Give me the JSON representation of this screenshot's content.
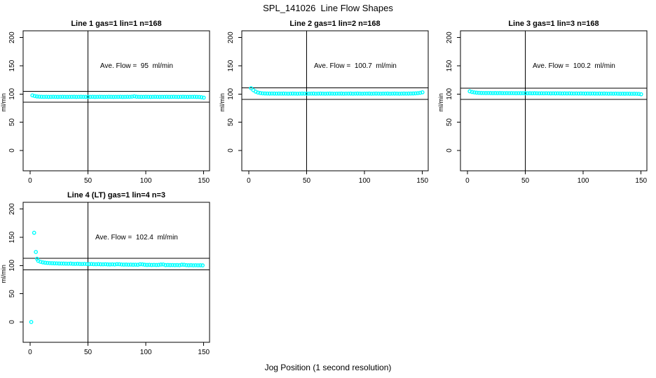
{
  "figure": {
    "title": "SPL_141026  Line Flow Shapes",
    "xlabel": "Jog Position (1 second resolution)",
    "background_color": "#ffffff",
    "text_color": "#000000"
  },
  "chart_data": {
    "type": "scatter",
    "point_color": "#00ffff",
    "axis_color": "#000000",
    "marker": "open-circle",
    "xlim": [
      -6,
      155
    ],
    "ylim": [
      -36,
      212
    ],
    "x_ticks": [
      0,
      50,
      100,
      150
    ],
    "y_ticks": [
      0,
      50,
      100,
      150,
      200
    ],
    "ylabel": "ml/min",
    "xlabel": "Jog Position (1 second resolution)",
    "vline_x": 50,
    "grid": "off",
    "legend": "none",
    "panels": [
      {
        "title": "Line 1 gas=1 lin=1 n=168",
        "gas": 1,
        "lin": 1,
        "n": 168,
        "ave_flow_value": 95,
        "ave_flow_label": "Ave. Flow =  95  ml/min",
        "ref_line_upper": 104.5,
        "ref_line_lower": 85.5,
        "points": [
          [
            2,
            97.6
          ],
          [
            4,
            96.4
          ],
          [
            6,
            95.7
          ],
          [
            8,
            95.3
          ],
          [
            10,
            95.1
          ],
          [
            12,
            95.0
          ],
          [
            14,
            95.1
          ],
          [
            16,
            94.9
          ],
          [
            18,
            95.0
          ],
          [
            20,
            95.1
          ],
          [
            22,
            95.0
          ],
          [
            24,
            94.9
          ],
          [
            26,
            95.0
          ],
          [
            28,
            95.1
          ],
          [
            30,
            95.0
          ],
          [
            32,
            94.9
          ],
          [
            34,
            95.0
          ],
          [
            36,
            95.0
          ],
          [
            38,
            95.1
          ],
          [
            40,
            94.9
          ],
          [
            42,
            95.0
          ],
          [
            44,
            95.1
          ],
          [
            46,
            95.0
          ],
          [
            48,
            94.9
          ],
          [
            50,
            95.0
          ],
          [
            52,
            95.0
          ],
          [
            54,
            95.1
          ],
          [
            56,
            94.9
          ],
          [
            58,
            95.0
          ],
          [
            60,
            95.1
          ],
          [
            62,
            95.0
          ],
          [
            64,
            94.9
          ],
          [
            66,
            95.0
          ],
          [
            68,
            95.1
          ],
          [
            70,
            95.0
          ],
          [
            72,
            94.9
          ],
          [
            74,
            95.0
          ],
          [
            76,
            95.0
          ],
          [
            78,
            95.1
          ],
          [
            80,
            94.9
          ],
          [
            82,
            95.0
          ],
          [
            84,
            95.1
          ],
          [
            86,
            95.0
          ],
          [
            88,
            95.3
          ],
          [
            90,
            95.9
          ],
          [
            92,
            95.2
          ],
          [
            94,
            95.0
          ],
          [
            96,
            94.9
          ],
          [
            98,
            95.0
          ],
          [
            100,
            95.1
          ],
          [
            102,
            95.0
          ],
          [
            104,
            94.9
          ],
          [
            106,
            95.0
          ],
          [
            108,
            95.1
          ],
          [
            110,
            95.0
          ],
          [
            112,
            94.9
          ],
          [
            114,
            95.0
          ],
          [
            116,
            95.0
          ],
          [
            118,
            95.1
          ],
          [
            120,
            94.9
          ],
          [
            122,
            95.0
          ],
          [
            124,
            95.1
          ],
          [
            126,
            95.0
          ],
          [
            128,
            94.9
          ],
          [
            130,
            95.0
          ],
          [
            132,
            95.1
          ],
          [
            134,
            95.0
          ],
          [
            136,
            94.9
          ],
          [
            138,
            95.0
          ],
          [
            140,
            95.0
          ],
          [
            142,
            95.1
          ],
          [
            144,
            94.9
          ],
          [
            146,
            94.8
          ],
          [
            148,
            94.3
          ],
          [
            150,
            93.6
          ]
        ]
      },
      {
        "title": "Line 2 gas=1 lin=2 n=168",
        "gas": 1,
        "lin": 2,
        "n": 168,
        "ave_flow_value": 100.7,
        "ave_flow_label": "Ave. Flow =  100.7  ml/min",
        "ref_line_upper": 110.8,
        "ref_line_lower": 90.6,
        "points": [
          [
            2,
            110.3
          ],
          [
            4,
            106.8
          ],
          [
            6,
            104.2
          ],
          [
            8,
            102.6
          ],
          [
            10,
            101.7
          ],
          [
            12,
            101.2
          ],
          [
            14,
            101.0
          ],
          [
            16,
            100.9
          ],
          [
            18,
            100.8
          ],
          [
            20,
            100.9
          ],
          [
            22,
            100.8
          ],
          [
            24,
            100.7
          ],
          [
            26,
            100.8
          ],
          [
            28,
            100.7
          ],
          [
            30,
            100.8
          ],
          [
            32,
            100.7
          ],
          [
            34,
            100.6
          ],
          [
            36,
            100.7
          ],
          [
            38,
            100.8
          ],
          [
            40,
            100.7
          ],
          [
            42,
            100.6
          ],
          [
            44,
            100.7
          ],
          [
            46,
            100.8
          ],
          [
            48,
            100.7
          ],
          [
            50,
            100.6
          ],
          [
            52,
            100.7
          ],
          [
            54,
            100.7
          ],
          [
            56,
            100.8
          ],
          [
            58,
            100.6
          ],
          [
            60,
            100.7
          ],
          [
            62,
            100.8
          ],
          [
            64,
            100.7
          ],
          [
            66,
            100.6
          ],
          [
            68,
            100.7
          ],
          [
            70,
            100.8
          ],
          [
            72,
            100.7
          ],
          [
            74,
            100.6
          ],
          [
            76,
            100.7
          ],
          [
            78,
            100.7
          ],
          [
            80,
            100.8
          ],
          [
            82,
            100.6
          ],
          [
            84,
            100.7
          ],
          [
            86,
            100.7
          ],
          [
            88,
            100.8
          ],
          [
            90,
            100.6
          ],
          [
            92,
            100.7
          ],
          [
            94,
            100.8
          ],
          [
            96,
            100.7
          ],
          [
            98,
            100.6
          ],
          [
            100,
            100.7
          ],
          [
            102,
            100.7
          ],
          [
            104,
            100.8
          ],
          [
            106,
            100.6
          ],
          [
            108,
            100.7
          ],
          [
            110,
            100.8
          ],
          [
            112,
            100.7
          ],
          [
            114,
            100.6
          ],
          [
            116,
            100.7
          ],
          [
            118,
            100.7
          ],
          [
            120,
            100.8
          ],
          [
            122,
            100.6
          ],
          [
            124,
            100.7
          ],
          [
            126,
            100.8
          ],
          [
            128,
            100.7
          ],
          [
            130,
            100.6
          ],
          [
            132,
            100.7
          ],
          [
            134,
            100.8
          ],
          [
            136,
            100.7
          ],
          [
            138,
            100.8
          ],
          [
            140,
            100.9
          ],
          [
            142,
            101.0
          ],
          [
            144,
            101.2
          ],
          [
            146,
            101.5
          ],
          [
            148,
            102.1
          ],
          [
            150,
            103.0
          ]
        ]
      },
      {
        "title": "Line 3 gas=1 lin=3 n=168",
        "gas": 1,
        "lin": 3,
        "n": 168,
        "ave_flow_value": 100.2,
        "ave_flow_label": "Ave. Flow =  100.2  ml/min",
        "ref_line_upper": 110.2,
        "ref_line_lower": 90.2,
        "points": [
          [
            2,
            104.8
          ],
          [
            4,
            103.6
          ],
          [
            6,
            102.9
          ],
          [
            8,
            102.4
          ],
          [
            10,
            102.1
          ],
          [
            12,
            101.9
          ],
          [
            14,
            101.8
          ],
          [
            16,
            101.7
          ],
          [
            18,
            101.8
          ],
          [
            20,
            101.7
          ],
          [
            22,
            101.6
          ],
          [
            24,
            101.7
          ],
          [
            26,
            101.6
          ],
          [
            28,
            101.7
          ],
          [
            30,
            101.6
          ],
          [
            32,
            101.5
          ],
          [
            34,
            101.6
          ],
          [
            36,
            101.5
          ],
          [
            38,
            101.6
          ],
          [
            40,
            101.5
          ],
          [
            42,
            101.4
          ],
          [
            44,
            101.5
          ],
          [
            46,
            101.4
          ],
          [
            48,
            101.5
          ],
          [
            50,
            101.4
          ],
          [
            52,
            101.3
          ],
          [
            54,
            101.4
          ],
          [
            56,
            101.3
          ],
          [
            58,
            101.4
          ],
          [
            60,
            101.3
          ],
          [
            62,
            101.2
          ],
          [
            64,
            101.3
          ],
          [
            66,
            101.2
          ],
          [
            68,
            101.3
          ],
          [
            70,
            101.2
          ],
          [
            72,
            101.1
          ],
          [
            74,
            101.2
          ],
          [
            76,
            101.1
          ],
          [
            78,
            101.2
          ],
          [
            80,
            101.1
          ],
          [
            82,
            101.0
          ],
          [
            84,
            101.1
          ],
          [
            86,
            101.0
          ],
          [
            88,
            101.1
          ],
          [
            90,
            101.0
          ],
          [
            92,
            100.9
          ],
          [
            94,
            101.0
          ],
          [
            96,
            100.9
          ],
          [
            98,
            101.0
          ],
          [
            100,
            100.9
          ],
          [
            102,
            100.8
          ],
          [
            104,
            100.9
          ],
          [
            106,
            100.8
          ],
          [
            108,
            100.9
          ],
          [
            110,
            100.8
          ],
          [
            112,
            100.7
          ],
          [
            114,
            100.8
          ],
          [
            116,
            100.7
          ],
          [
            118,
            100.8
          ],
          [
            120,
            100.7
          ],
          [
            122,
            100.6
          ],
          [
            124,
            100.7
          ],
          [
            126,
            100.6
          ],
          [
            128,
            100.7
          ],
          [
            130,
            100.6
          ],
          [
            132,
            100.5
          ],
          [
            134,
            100.6
          ],
          [
            136,
            100.5
          ],
          [
            138,
            100.6
          ],
          [
            140,
            100.5
          ],
          [
            142,
            100.4
          ],
          [
            144,
            100.5
          ],
          [
            146,
            100.4
          ],
          [
            148,
            100.2
          ],
          [
            150,
            99.6
          ]
        ]
      },
      {
        "title": "Line 4 (LT) gas=1 lin=4 n=3",
        "gas": 1,
        "lin": 4,
        "n": 3,
        "ave_flow_value": 102.4,
        "ave_flow_label": "Ave. Flow =  102.4  ml/min",
        "ref_line_upper": 112.6,
        "ref_line_lower": 92.2,
        "points": [
          [
            1,
            0
          ],
          [
            3.5,
            158
          ],
          [
            5,
            124
          ],
          [
            6,
            112
          ],
          [
            7,
            108.3
          ],
          [
            9,
            106.6
          ],
          [
            11,
            105.6
          ],
          [
            13,
            105.0
          ],
          [
            15,
            104.6
          ],
          [
            17,
            104.3
          ],
          [
            19,
            104.1
          ],
          [
            21,
            103.9
          ],
          [
            23,
            103.8
          ],
          [
            25,
            103.6
          ],
          [
            27,
            103.5
          ],
          [
            29,
            103.4
          ],
          [
            31,
            103.3
          ],
          [
            33,
            103.2
          ],
          [
            35,
            103.4
          ],
          [
            37,
            103.0
          ],
          [
            39,
            102.9
          ],
          [
            41,
            103.1
          ],
          [
            43,
            102.8
          ],
          [
            45,
            102.7
          ],
          [
            47,
            102.9
          ],
          [
            49,
            102.6
          ],
          [
            51,
            102.5
          ],
          [
            53,
            102.7
          ],
          [
            55,
            102.4
          ],
          [
            57,
            102.3
          ],
          [
            59,
            102.5
          ],
          [
            61,
            102.2
          ],
          [
            63,
            102.1
          ],
          [
            65,
            102.3
          ],
          [
            67,
            102.0
          ],
          [
            69,
            101.9
          ],
          [
            71,
            102.1
          ],
          [
            73,
            101.8
          ],
          [
            75,
            102.4
          ],
          [
            77,
            102.3
          ],
          [
            79,
            101.8
          ],
          [
            81,
            101.6
          ],
          [
            83,
            101.7
          ],
          [
            85,
            101.5
          ],
          [
            87,
            101.6
          ],
          [
            89,
            101.4
          ],
          [
            91,
            101.5
          ],
          [
            93,
            101.3
          ],
          [
            95,
            102.2
          ],
          [
            97,
            102.0
          ],
          [
            99,
            101.4
          ],
          [
            101,
            101.1
          ],
          [
            103,
            101.3
          ],
          [
            105,
            101.0
          ],
          [
            107,
            101.2
          ],
          [
            109,
            101.0
          ],
          [
            111,
            101.1
          ],
          [
            113,
            101.7
          ],
          [
            115,
            101.8
          ],
          [
            117,
            100.8
          ],
          [
            119,
            101.0
          ],
          [
            121,
            100.8
          ],
          [
            123,
            100.9
          ],
          [
            125,
            100.7
          ],
          [
            127,
            100.9
          ],
          [
            129,
            100.6
          ],
          [
            131,
            101.4
          ],
          [
            133,
            101.3
          ],
          [
            135,
            100.7
          ],
          [
            137,
            100.5
          ],
          [
            139,
            100.7
          ],
          [
            141,
            100.4
          ],
          [
            143,
            100.6
          ],
          [
            145,
            100.4
          ],
          [
            147,
            100.5
          ],
          [
            149,
            100.3
          ]
        ]
      }
    ]
  }
}
